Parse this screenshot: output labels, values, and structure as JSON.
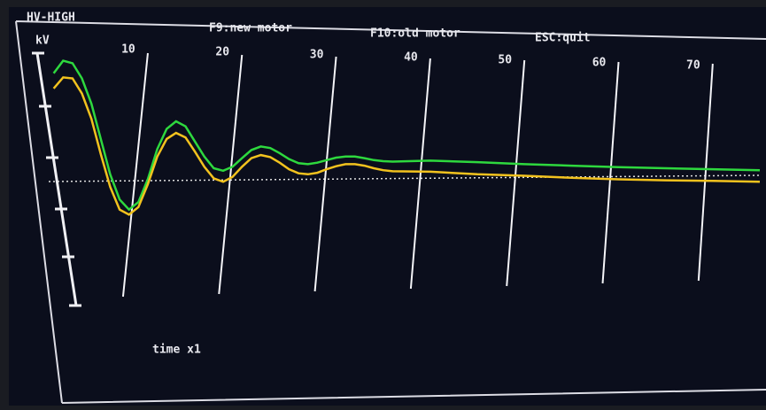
{
  "chart_data": {
    "type": "line",
    "title": "HV-HIGH",
    "keys": [
      "F9:new motor",
      "F10:old motor",
      "ESC:quit"
    ],
    "y_label": "kV",
    "x_label": "time x1",
    "x": [
      0,
      1,
      2,
      3,
      4,
      5,
      6,
      7,
      8,
      9,
      10,
      11,
      12,
      13,
      14,
      15,
      16,
      17,
      18,
      19,
      20,
      21,
      22,
      23,
      24,
      25,
      26,
      27,
      28,
      29,
      30,
      31,
      32,
      33,
      34,
      35,
      36,
      40,
      45,
      50,
      55,
      60,
      65,
      70,
      75
    ],
    "series": [
      {
        "color": "#2ed83e",
        "values": [
          4.6,
          4.85,
          4.8,
          4.5,
          4.0,
          3.3,
          2.6,
          2.1,
          1.9,
          2.05,
          2.5,
          3.1,
          3.5,
          3.65,
          3.55,
          3.25,
          2.95,
          2.72,
          2.67,
          2.75,
          2.92,
          3.08,
          3.15,
          3.12,
          3.02,
          2.9,
          2.82,
          2.8,
          2.83,
          2.88,
          2.93,
          2.95,
          2.95,
          2.92,
          2.88,
          2.86,
          2.85,
          2.87,
          2.84,
          2.8,
          2.77,
          2.74,
          2.72,
          2.7,
          2.68
        ]
      },
      {
        "color": "#f2c21e",
        "values": [
          4.3,
          4.52,
          4.5,
          4.2,
          3.7,
          3.0,
          2.35,
          1.9,
          1.8,
          1.95,
          2.4,
          2.95,
          3.3,
          3.42,
          3.33,
          3.05,
          2.75,
          2.52,
          2.45,
          2.55,
          2.75,
          2.92,
          2.98,
          2.94,
          2.83,
          2.7,
          2.62,
          2.6,
          2.63,
          2.7,
          2.76,
          2.8,
          2.8,
          2.77,
          2.72,
          2.68,
          2.66,
          2.65,
          2.6,
          2.57,
          2.53,
          2.5,
          2.48,
          2.47,
          2.45
        ]
      }
    ],
    "xlim": [
      -1,
      75
    ],
    "xticks": [
      10,
      20,
      30,
      40,
      50,
      60,
      70
    ],
    "ylim": [
      0,
      5
    ],
    "grid": true
  }
}
